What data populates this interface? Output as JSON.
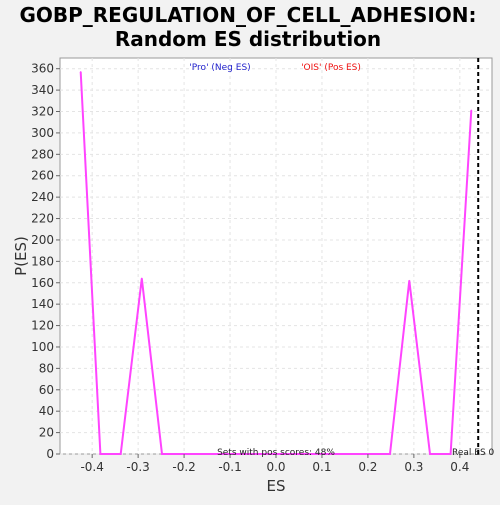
{
  "chart_data": {
    "type": "line",
    "title_line1": "GOBP_REGULATION_OF_CELL_ADHESION:",
    "title_line2": "Random ES distribution",
    "xlabel": "ES",
    "ylabel": "P(ES)",
    "xlim": [
      -0.47,
      0.47
    ],
    "ylim": [
      0,
      370
    ],
    "x_ticks": [
      -0.4,
      -0.3,
      -0.2,
      -0.1,
      0.0,
      0.1,
      0.2,
      0.3,
      0.4
    ],
    "x_tick_labels": [
      "-0.4",
      "-0.3",
      "-0.2",
      "-0.1",
      "0.0",
      "0.1",
      "0.2",
      "0.3",
      "0.4"
    ],
    "y_ticks": [
      0,
      20,
      40,
      60,
      80,
      100,
      120,
      140,
      160,
      180,
      200,
      220,
      240,
      260,
      280,
      300,
      320,
      340,
      360
    ],
    "y_tick_labels": [
      "0",
      "20",
      "40",
      "60",
      "80",
      "100",
      "120",
      "140",
      "160",
      "180",
      "200",
      "220",
      "240",
      "260",
      "280",
      "300",
      "320",
      "340",
      "360"
    ],
    "grid": true,
    "series": [
      {
        "color": "#ff44ff",
        "x": [
          -0.425,
          -0.382,
          -0.338,
          -0.292,
          -0.248,
          0.248,
          0.29,
          0.335,
          0.38,
          0.425
        ],
        "y": [
          357,
          0,
          0,
          164,
          0,
          0,
          162,
          0,
          0,
          321
        ]
      }
    ],
    "legend": [
      {
        "label": "'Pro' (Neg ES)",
        "color": "#2222cc"
      },
      {
        "label": "'OIS' (Pos ES)",
        "color": "#ee1111"
      }
    ],
    "annotations": {
      "sets_with_pos_scores": "Sets with pos scores: 48%",
      "real_es": "Real ES 0"
    },
    "real_es_x": 0.44,
    "colors": {
      "background": "#f2f2f2",
      "plot_bg": "#ffffff",
      "grid": "#e4e4e4",
      "line": "#ff44ff"
    }
  }
}
